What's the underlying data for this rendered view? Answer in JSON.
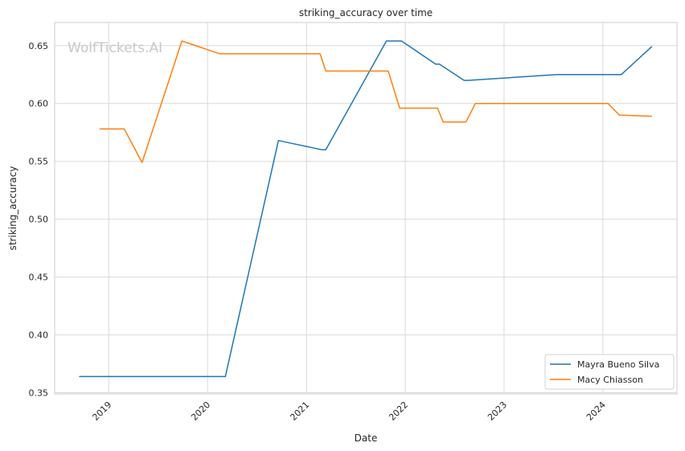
{
  "chart_data": {
    "type": "line",
    "title": "striking_accuracy over time",
    "xlabel": "Date",
    "ylabel": "striking_accuracy",
    "watermark": "WolfTickets.AI",
    "xlim": [
      "2018-06-15",
      "2024-10-01"
    ],
    "ylim": [
      0.349,
      0.67
    ],
    "x_ticks": [
      "2019-01-01",
      "2020-01-01",
      "2021-01-01",
      "2022-01-01",
      "2023-01-01",
      "2024-01-01"
    ],
    "x_tick_labels": [
      "2019",
      "2020",
      "2021",
      "2022",
      "2023",
      "2024"
    ],
    "y_ticks": [
      0.35,
      0.4,
      0.45,
      0.5,
      0.55,
      0.6,
      0.65
    ],
    "y_tick_labels": [
      "0.35",
      "0.40",
      "0.45",
      "0.50",
      "0.55",
      "0.60",
      "0.65"
    ],
    "grid": true,
    "legend_position": "bottom-right",
    "series": [
      {
        "name": "Mayra Bueno Silva",
        "color": "#1f77b4",
        "points": [
          {
            "x": "2018-09-15",
            "y": 0.364
          },
          {
            "x": "2020-03-07",
            "y": 0.364
          },
          {
            "x": "2020-09-19",
            "y": 0.568
          },
          {
            "x": "2021-02-27",
            "y": 0.56
          },
          {
            "x": "2021-03-13",
            "y": 0.56
          },
          {
            "x": "2021-10-23",
            "y": 0.654
          },
          {
            "x": "2021-12-18",
            "y": 0.654
          },
          {
            "x": "2022-04-23",
            "y": 0.634
          },
          {
            "x": "2022-05-07",
            "y": 0.634
          },
          {
            "x": "2022-08-06",
            "y": 0.62
          },
          {
            "x": "2022-08-20",
            "y": 0.62
          },
          {
            "x": "2023-07-15",
            "y": 0.625
          },
          {
            "x": "2024-03-09",
            "y": 0.625
          },
          {
            "x": "2024-06-29",
            "y": 0.649
          }
        ]
      },
      {
        "name": "Macy Chiasson",
        "color": "#ff7f0e",
        "points": [
          {
            "x": "2018-11-30",
            "y": 0.578
          },
          {
            "x": "2019-02-27",
            "y": 0.578
          },
          {
            "x": "2019-05-04",
            "y": 0.549
          },
          {
            "x": "2019-09-28",
            "y": 0.654
          },
          {
            "x": "2020-02-15",
            "y": 0.643
          },
          {
            "x": "2021-02-20",
            "y": 0.643
          },
          {
            "x": "2021-03-13",
            "y": 0.628
          },
          {
            "x": "2021-10-30",
            "y": 0.628
          },
          {
            "x": "2021-12-11",
            "y": 0.596
          },
          {
            "x": "2022-04-30",
            "y": 0.596
          },
          {
            "x": "2022-05-21",
            "y": 0.584
          },
          {
            "x": "2022-08-13",
            "y": 0.584
          },
          {
            "x": "2022-09-17",
            "y": 0.6
          },
          {
            "x": "2024-01-20",
            "y": 0.6
          },
          {
            "x": "2024-03-02",
            "y": 0.59
          },
          {
            "x": "2024-06-29",
            "y": 0.589
          }
        ]
      }
    ]
  }
}
